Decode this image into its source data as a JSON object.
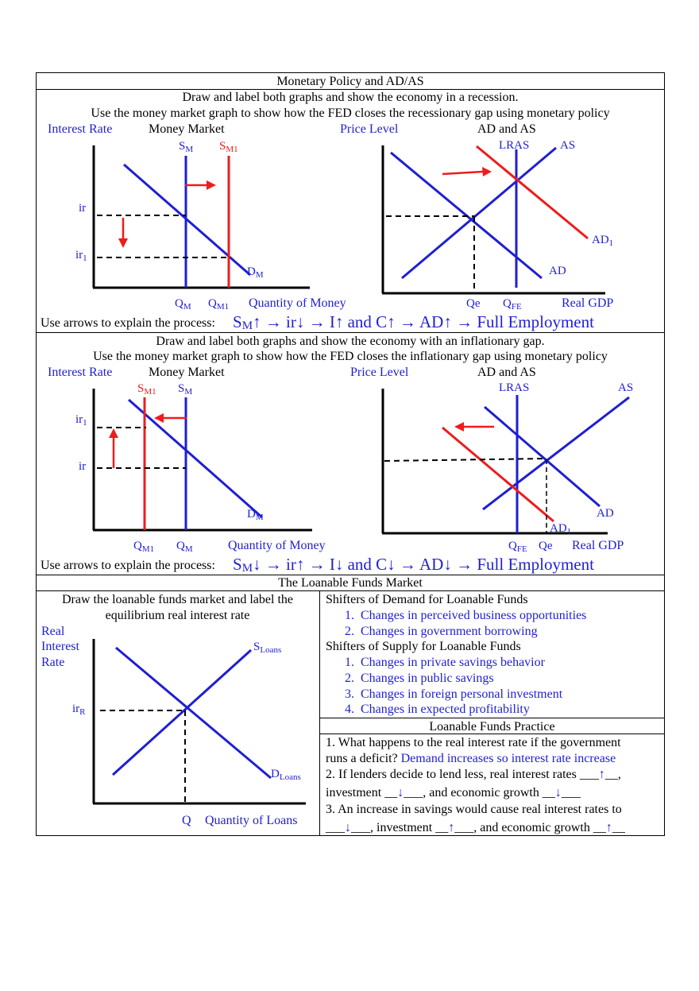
{
  "page_title": "Monetary Policy and AD/AS",
  "section1": {
    "instr1": "Draw and label both graphs and show the economy in a recession.",
    "instr2": "Use the money market graph to show how the FED closes the recessionary gap using monetary policy",
    "mm": {
      "ylabel": "Interest Rate",
      "title": "Money Market",
      "s": "S",
      "s_sub": "M",
      "s1": "S",
      "s1_sub": "M1",
      "ir": "ir",
      "ir1": "ir",
      "ir1_sub": "1",
      "d": "D",
      "d_sub": "M",
      "q": "Q",
      "q_sub": "M",
      "q1": "Q",
      "q1_sub": "M1",
      "xlabel": "Quantity of Money"
    },
    "adas": {
      "ylabel": "Price Level",
      "title": "AD and AS",
      "lras": "LRAS",
      "as": "AS",
      "ad1": "AD",
      "ad1_sub": "1",
      "ad": "AD",
      "qe": "Qe",
      "qfe": "Q",
      "qfe_sub": "FE",
      "xlabel": "Real GDP"
    },
    "process_label": "Use arrows to explain the process:",
    "process": "S",
    "process_sub": "M",
    "process_rest": "↑ → ir↓ → I↑ and C↑ → AD↑ → Full Employment"
  },
  "section2": {
    "instr1": "Draw and label both graphs and show the economy with an inflationary gap.",
    "instr2": "Use the money market graph to show how the FED closes the inflationary gap using monetary policy",
    "mm": {
      "ylabel": "Interest Rate",
      "title": "Money Market",
      "s1": "S",
      "s1_sub": "M1",
      "s": "S",
      "s_sub": "M",
      "ir1": "ir",
      "ir1_sub": "1",
      "ir": "ir",
      "d": "D",
      "d_sub": "M",
      "q1": "Q",
      "q1_sub": "M1",
      "q": "Q",
      "q_sub": "M",
      "xlabel": "Quantity of Money"
    },
    "adas": {
      "ylabel": "Price Level",
      "title": "AD and AS",
      "lras": "LRAS",
      "as": "AS",
      "ad": "AD",
      "ad1": "AD",
      "ad1_sub": "1",
      "qfe": "Q",
      "qfe_sub": "FE",
      "qe": "Qe",
      "xlabel": "Real GDP"
    },
    "process_label": "Use arrows to explain the process:",
    "process": "S",
    "process_sub": "M",
    "process_rest": "↓ → ir↑ → I↓ and C↓ → AD↓ → Full Employment"
  },
  "section3": {
    "title": "The Loanable Funds Market",
    "left_instr1": "Draw the loanable funds market and label the",
    "left_instr2": "equilibrium real interest rate",
    "ylabel1": "Real",
    "ylabel2": "Interest",
    "ylabel3": "Rate",
    "s": "S",
    "s_sub": "Loans",
    "d": "D",
    "d_sub": "Loans",
    "ir": "ir",
    "ir_sub": "R",
    "q": "Q",
    "xlabel": "Quantity of Loans",
    "demand_heading": "Shifters of Demand for Loanable Funds",
    "demand_items": [
      "Changes in perceived business opportunities",
      "Changes in government borrowing"
    ],
    "supply_heading": "Shifters of Supply for Loanable Funds",
    "supply_items": [
      "Changes in private savings behavior",
      "Changes in public savings",
      "Changes in foreign personal investment",
      "Changes in expected profitability"
    ],
    "practice_title": "Loanable Funds Practice",
    "q1a": "1. What happens to the real interest rate if the government",
    "q1b": "runs a deficit?",
    "q1_answer": "Demand increases so interest rate increase",
    "q2a_pre": "2. If lenders decide to lend less, real interest rates ___",
    "q2a_ans": "↑",
    "q2a_post": "__,",
    "q2b_pre": "investment __",
    "q2b_ans1": "↓",
    "q2b_mid": "___, and economic growth __",
    "q2b_ans2": "↓",
    "q2b_post": "___",
    "q3a": "3. An increase in savings would cause real interest rates to",
    "q3b_pre": "___",
    "q3b_ans1": "↓",
    "q3b_mid1": "___, investment __",
    "q3b_ans2": "↑",
    "q3b_mid2": "___, and economic growth __",
    "q3b_ans3": "↑",
    "q3b_post": "__"
  },
  "colors": {
    "blue": "#1f1fd1",
    "red": "#ee1c1c"
  }
}
